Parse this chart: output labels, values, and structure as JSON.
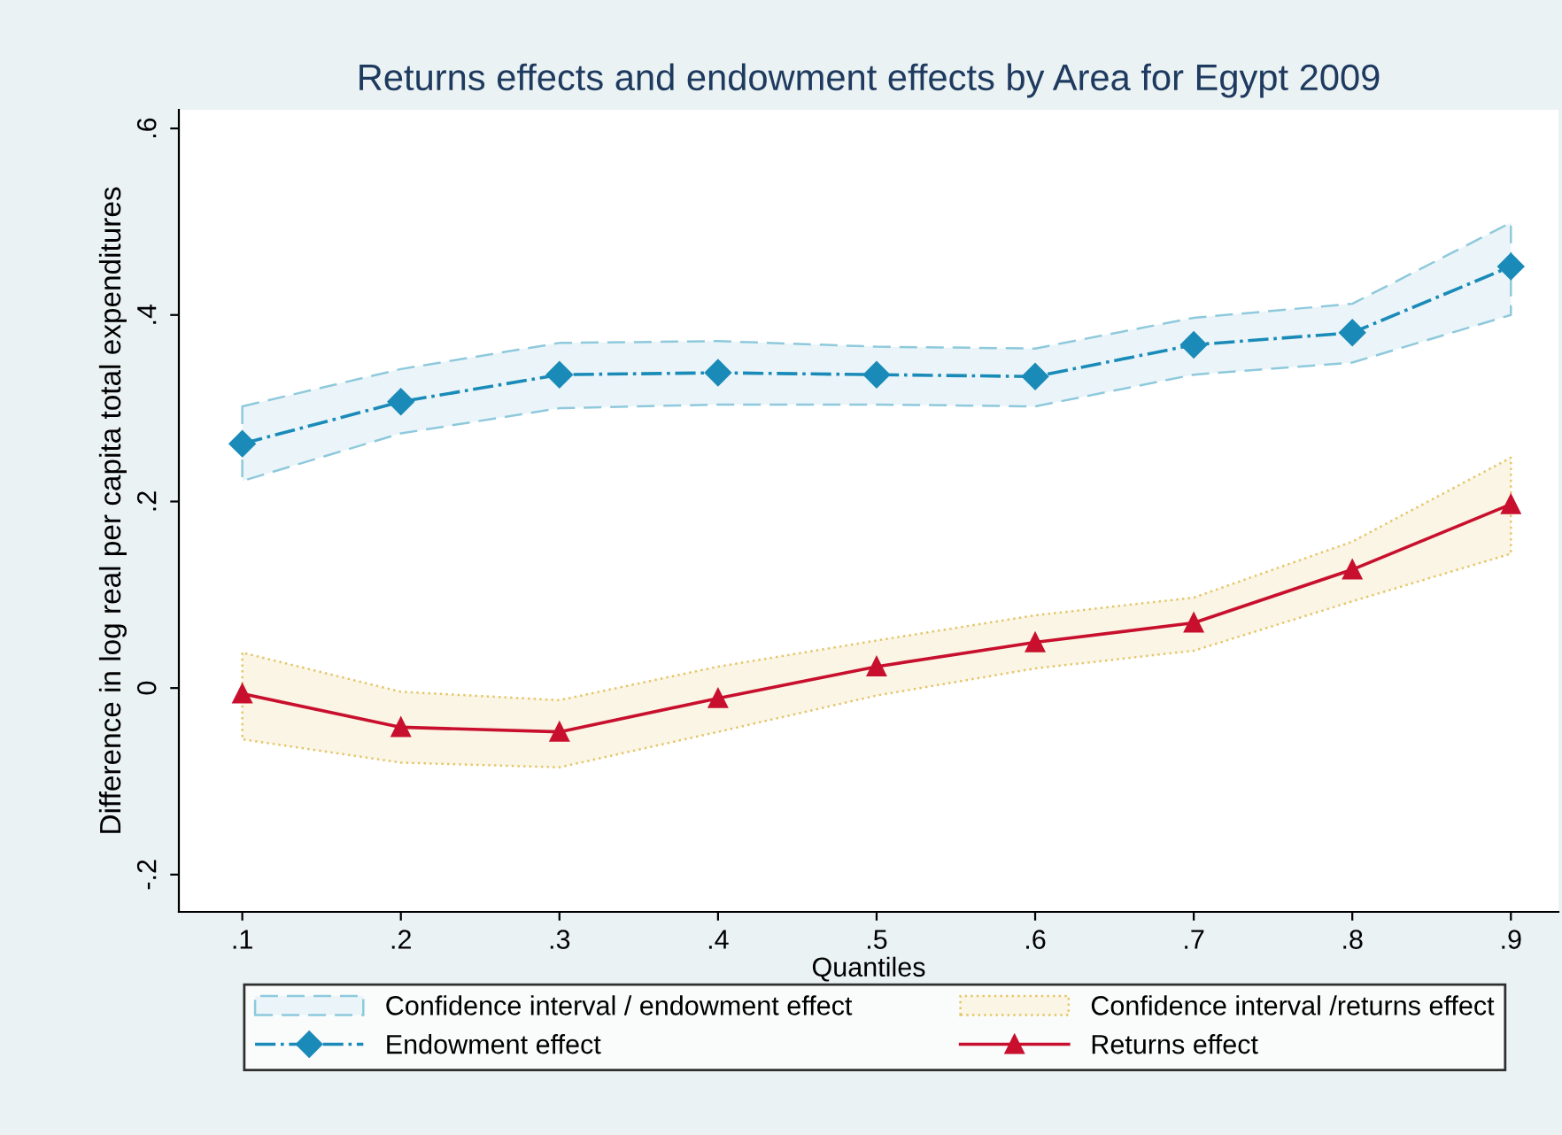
{
  "chart_data": {
    "type": "line",
    "title": "Returns effects and endowment effects by Area for Egypt 2009",
    "xlabel": "Quantiles",
    "ylabel": "Difference in log real per capita total expenditures",
    "x": [
      0.1,
      0.2,
      0.3,
      0.4,
      0.5,
      0.6,
      0.7,
      0.8,
      0.9
    ],
    "annotations": [
      "Confidence interval / endowment effect",
      "Confidence interval /returns effect"
    ],
    "series": [
      {
        "name": "Endowment effect",
        "color": "#1a8bb8",
        "marker": "diamond",
        "line_style": "dashdot",
        "values": [
          0.262,
          0.307,
          0.336,
          0.338,
          0.336,
          0.334,
          0.368,
          0.381,
          0.452
        ],
        "lower": [
          0.222,
          0.273,
          0.3,
          0.304,
          0.304,
          0.302,
          0.336,
          0.349,
          0.4
        ],
        "upper": [
          0.302,
          0.342,
          0.37,
          0.372,
          0.366,
          0.364,
          0.397,
          0.412,
          0.499
        ]
      },
      {
        "name": "Returns effect",
        "color": "#c8102e",
        "marker": "triangle",
        "line_style": "solid",
        "values": [
          -0.006,
          -0.042,
          -0.047,
          -0.011,
          0.023,
          0.049,
          0.07,
          0.127,
          0.197
        ],
        "lower": [
          -0.055,
          -0.08,
          -0.085,
          -0.047,
          -0.008,
          0.021,
          0.04,
          0.093,
          0.144
        ],
        "upper": [
          0.038,
          -0.004,
          -0.013,
          0.023,
          0.051,
          0.078,
          0.097,
          0.157,
          0.247
        ]
      }
    ],
    "xlim": [
      0.06,
      0.93
    ],
    "ylim": [
      -0.24,
      0.62
    ],
    "xticks": [
      {
        "value": 0.1,
        "label": ".1"
      },
      {
        "value": 0.2,
        "label": ".2"
      },
      {
        "value": 0.3,
        "label": ".3"
      },
      {
        "value": 0.4,
        "label": ".4"
      },
      {
        "value": 0.5,
        "label": ".5"
      },
      {
        "value": 0.6,
        "label": ".6"
      },
      {
        "value": 0.7,
        "label": ".7"
      },
      {
        "value": 0.8,
        "label": ".8"
      },
      {
        "value": 0.9,
        "label": ".9"
      }
    ],
    "yticks": [
      {
        "value": -0.2,
        "label": "-.2"
      },
      0,
      {
        "value": 0.2,
        "label": ".2"
      },
      {
        "value": 0.4,
        "label": ".4"
      },
      {
        "value": 0.6,
        "label": ".6"
      }
    ],
    "grid": false,
    "legend": "bottom"
  }
}
